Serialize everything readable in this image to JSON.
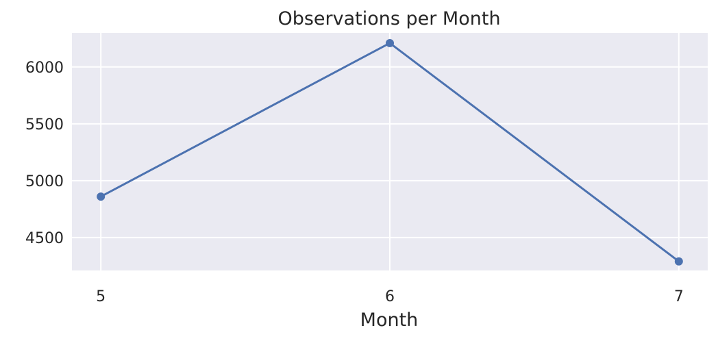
{
  "chart_data": {
    "type": "line",
    "title": "Observations per Month",
    "xlabel": "Month",
    "ylabel": "",
    "x": [
      5,
      6,
      7
    ],
    "series": [
      {
        "values": [
          4860,
          6210,
          4290
        ]
      }
    ],
    "xticks": [
      "5",
      "6",
      "7"
    ],
    "yticks": [
      4500,
      5000,
      5500,
      6000
    ],
    "xlim": [
      4.9,
      7.1
    ],
    "ylim": [
      4210,
      6300
    ],
    "grid": true,
    "legend": "none",
    "colors": {
      "plot_background": "#eaeaf2",
      "grid": "#ffffff",
      "line": "#4c72b0",
      "text": "#262626"
    }
  }
}
